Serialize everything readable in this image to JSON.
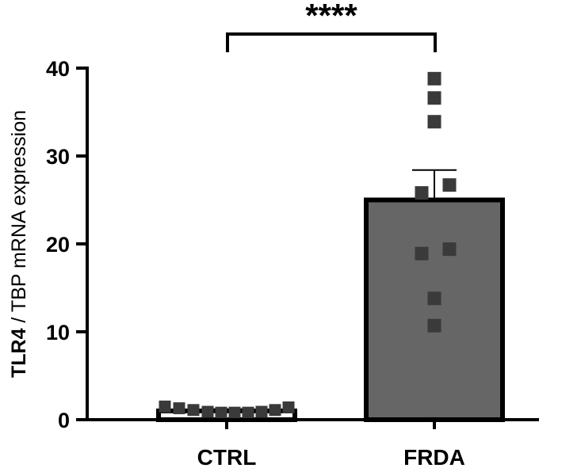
{
  "chart_data": {
    "type": "bar",
    "categories": [
      "CTRL",
      "FRDA"
    ],
    "values": [
      1.0,
      25.0
    ],
    "error": [
      0.2,
      3.4
    ],
    "points": [
      [
        1.5,
        1.3,
        1.1,
        0.9,
        0.8,
        0.8,
        0.8,
        0.9,
        1.1,
        1.4
      ],
      [
        38.8,
        36.6,
        33.9,
        25.8,
        26.7,
        19.4,
        18.9,
        13.8,
        10.7
      ]
    ],
    "ylim": [
      0,
      40
    ],
    "yticks": [
      0,
      10,
      20,
      30,
      40
    ],
    "ylabel_bold": "TLR4",
    "ylabel_rest": " / TBP mRNA expression",
    "significance": "****",
    "colors": {
      "ctrl_bar": "#ffffff",
      "frda_bar": "#666666",
      "bar_edge": "#000000",
      "ctrl_points": "#3a3a3a",
      "frda_points": "#3a3a3a"
    }
  }
}
